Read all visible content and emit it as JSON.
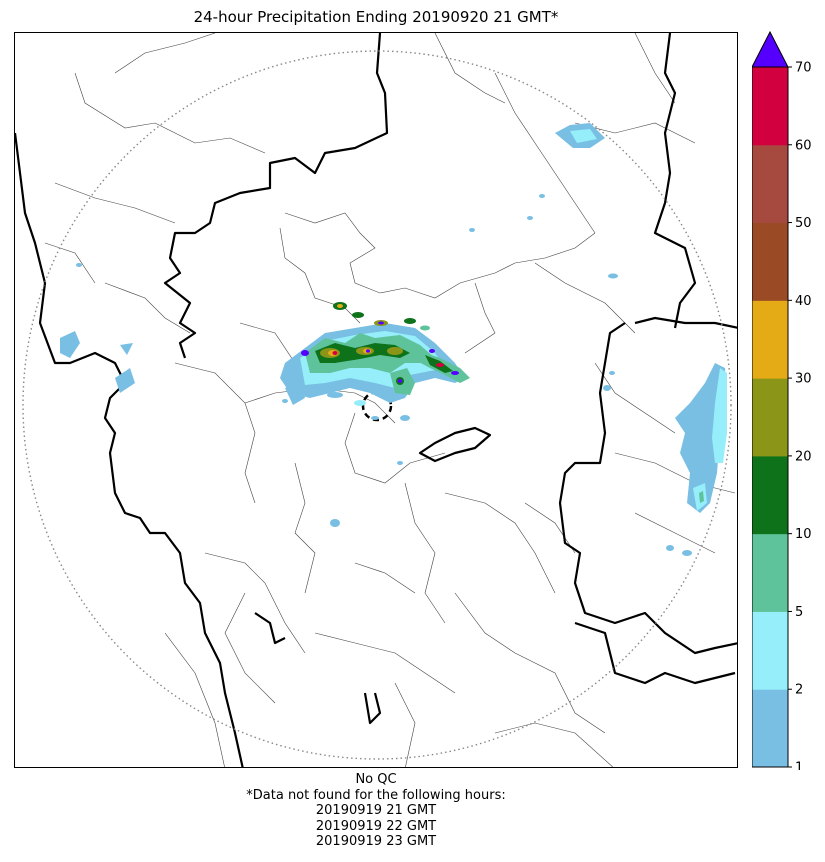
{
  "title": "24-hour Precipitation Ending 20190920 21 GMT*",
  "qc_label": "No QC",
  "missing_note": "*Data not found for the following hours:",
  "missing_hours": [
    "20190919 21 GMT",
    "20190919 22 GMT",
    "20190919 23 GMT"
  ],
  "colorbar": {
    "levels": [
      1,
      2,
      5,
      10,
      20,
      30,
      40,
      50,
      60,
      70
    ],
    "tick_labels": [
      "1",
      "2",
      "5",
      "10",
      "20",
      "30",
      "40",
      "50",
      "60",
      "70"
    ],
    "colors": [
      "#78bfe3",
      "#95eefa",
      "#5ec39b",
      "#0e721b",
      "#8b9618",
      "#e5ab17",
      "#9a4a24",
      "#a6493e",
      "#d3003f"
    ],
    "over_color": "#5500ff"
  }
}
